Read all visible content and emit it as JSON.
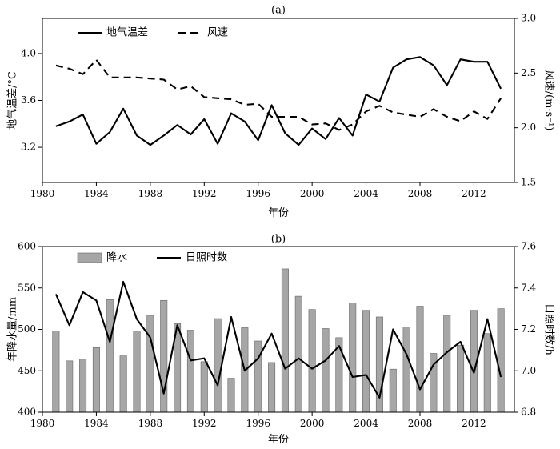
{
  "chart_data": [
    {
      "type": "line",
      "panel_label": "(a)",
      "x": [
        1981,
        1982,
        1983,
        1984,
        1985,
        1986,
        1987,
        1988,
        1989,
        1990,
        1991,
        1992,
        1993,
        1994,
        1995,
        1996,
        1997,
        1998,
        1999,
        2000,
        2001,
        2002,
        2003,
        2004,
        2005,
        2006,
        2007,
        2008,
        2009,
        2010,
        2011,
        2012,
        2013,
        2014
      ],
      "series": [
        {
          "name": "地气温差",
          "axis": "left",
          "style": "solid",
          "values": [
            3.38,
            3.42,
            3.48,
            3.23,
            3.33,
            3.53,
            3.3,
            3.22,
            3.3,
            3.39,
            3.31,
            3.44,
            3.23,
            3.49,
            3.42,
            3.26,
            3.56,
            3.32,
            3.22,
            3.36,
            3.27,
            3.45,
            3.3,
            3.65,
            3.59,
            3.88,
            3.95,
            3.97,
            3.9,
            3.73,
            3.95,
            3.93,
            3.93,
            3.7
          ]
        },
        {
          "name": "风速",
          "axis": "right",
          "style": "dashed",
          "values": [
            2.57,
            2.54,
            2.49,
            2.62,
            2.46,
            2.46,
            2.46,
            2.45,
            2.44,
            2.35,
            2.38,
            2.28,
            2.27,
            2.26,
            2.21,
            2.22,
            2.1,
            2.1,
            2.1,
            2.03,
            2.04,
            1.98,
            2.03,
            2.15,
            2.2,
            2.14,
            2.12,
            2.1,
            2.17,
            2.1,
            2.06,
            2.15,
            2.08,
            2.27
          ]
        }
      ],
      "xlabel": "年份",
      "ylabel_left": "地气温差/°C",
      "ylabel_right": "风速/(m·s⁻¹)",
      "xlim": [
        1980,
        2015
      ],
      "ylim_left": [
        2.9,
        4.3
      ],
      "ylim_right": [
        1.5,
        3.0
      ],
      "xticks": [
        "1980",
        "1984",
        "1988",
        "1992",
        "1996",
        "2000",
        "2004",
        "2008",
        "2012"
      ],
      "yticks_left": [
        "3.2",
        "3.6",
        "4.0"
      ],
      "yticks_right": [
        "1.5",
        "2.0",
        "2.5",
        "3.0"
      ],
      "legend_placement": "top-left",
      "grid": false
    },
    {
      "type": "bar+line",
      "panel_label": "(b)",
      "x": [
        1981,
        1982,
        1983,
        1984,
        1985,
        1986,
        1987,
        1988,
        1989,
        1990,
        1991,
        1992,
        1993,
        1994,
        1995,
        1996,
        1997,
        1998,
        1999,
        2000,
        2001,
        2002,
        2003,
        2004,
        2005,
        2006,
        2007,
        2008,
        2009,
        2010,
        2011,
        2012,
        2013,
        2014
      ],
      "series": [
        {
          "name": "降水",
          "axis": "left",
          "style": "bar",
          "color": "#a6a6a6",
          "values": [
            498,
            462,
            464,
            478,
            536,
            468,
            498,
            517,
            535,
            507,
            499,
            461,
            513,
            441,
            502,
            486,
            460,
            573,
            540,
            524,
            501,
            490,
            532,
            523,
            515,
            452,
            503,
            528,
            471,
            517,
            481,
            523,
            495,
            525
          ]
        },
        {
          "name": "日照时数",
          "axis": "right",
          "style": "solid",
          "values": [
            7.37,
            7.22,
            7.38,
            7.34,
            7.14,
            7.43,
            7.25,
            7.16,
            6.89,
            7.22,
            7.05,
            7.06,
            6.93,
            7.26,
            7.0,
            7.06,
            7.18,
            7.01,
            7.06,
            7.01,
            7.05,
            7.12,
            6.97,
            6.98,
            6.87,
            7.2,
            7.08,
            6.91,
            7.03,
            7.09,
            7.14,
            6.99,
            7.25,
            6.97
          ]
        }
      ],
      "xlabel": "年份",
      "ylabel_left": "年降水量/mm",
      "ylabel_right": "日照时数/h",
      "xlim": [
        1980,
        2015
      ],
      "ylim_left": [
        400,
        600
      ],
      "ylim_right": [
        6.8,
        7.6
      ],
      "xticks": [
        "1980",
        "1984",
        "1988",
        "1992",
        "1996",
        "2000",
        "2004",
        "2008",
        "2012"
      ],
      "yticks_left": [
        "400",
        "450",
        "500",
        "550",
        "600"
      ],
      "yticks_right": [
        "6.8",
        "7.0",
        "7.2",
        "7.4",
        "7.6"
      ],
      "legend_placement": "top-left",
      "grid": false
    }
  ]
}
